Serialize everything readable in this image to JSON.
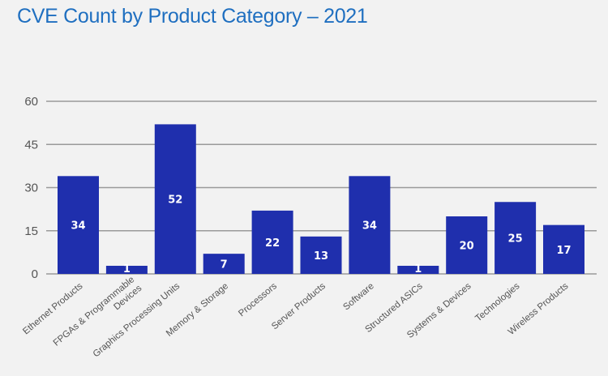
{
  "chart_data": {
    "type": "bar",
    "title": "CVE Count by Product Category – 2021",
    "xlabel": "",
    "ylabel": "",
    "ylim": [
      0,
      60
    ],
    "yticks": [
      0,
      15,
      30,
      45,
      60
    ],
    "grid": true,
    "legend": "none",
    "bar_color": "#1f2fad",
    "categories": [
      [
        "Ethernet Products"
      ],
      [
        "FPGAs & Programmable",
        "Devices"
      ],
      [
        "Graphics Processing Units"
      ],
      [
        "Memory & Storage"
      ],
      [
        "Processors"
      ],
      [
        "Server Products"
      ],
      [
        "Software"
      ],
      [
        "Structured ASICs"
      ],
      [
        "Systems & Devices"
      ],
      [
        "Technologies"
      ],
      [
        "Wireless Products"
      ]
    ],
    "values": [
      34,
      1,
      52,
      7,
      22,
      13,
      34,
      1,
      20,
      25,
      17
    ],
    "data_labels": [
      "34",
      "1",
      "52",
      "7",
      "22",
      "13",
      "34",
      "1",
      "20",
      "25",
      "17"
    ]
  }
}
